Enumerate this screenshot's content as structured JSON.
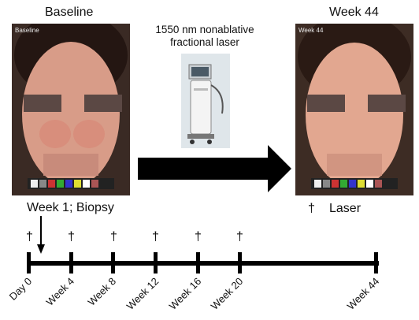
{
  "titles": {
    "baseline": "Baseline",
    "week44": "Week 44",
    "laser_line1": "1550 nm nonablative",
    "laser_line2": "fractional laser"
  },
  "photo_tags": {
    "baseline": "Baseline",
    "week44": "Week 44"
  },
  "labels": {
    "week1_biopsy": "Week 1; Biopsy",
    "laser_legend": "Laser",
    "dagger": "†"
  },
  "timeline": {
    "labels": [
      "Day 0",
      "Week 4",
      "Week 8",
      "Week 12",
      "Week 16",
      "Week 20",
      "Week 44"
    ]
  },
  "colors": {
    "arrow": "#000000",
    "skin": "#d99a86",
    "hair": "#2a1a14",
    "bg_photo": "#7c5a4a"
  }
}
